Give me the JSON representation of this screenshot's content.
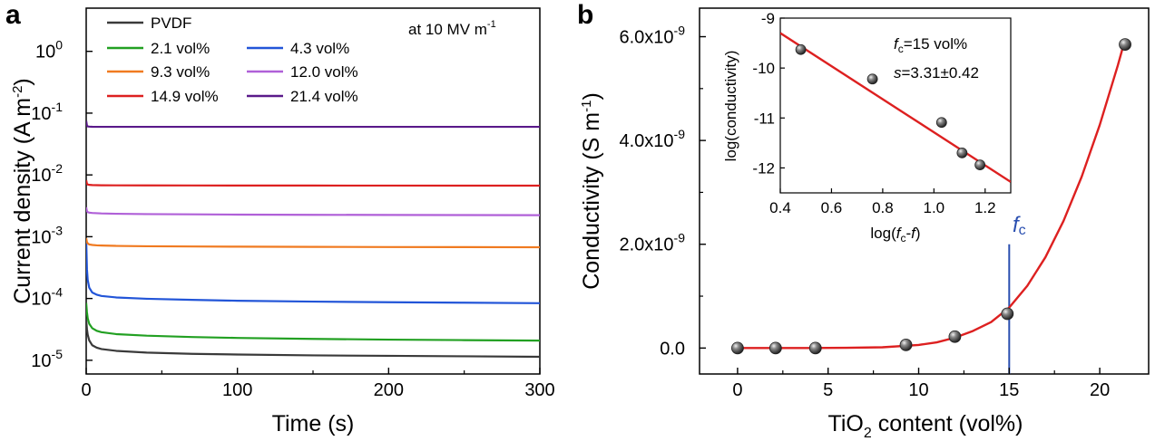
{
  "panel_a": {
    "letter": "a",
    "condition_label": "at 10 MV m",
    "condition_sup": "-1"
  },
  "panel_b": {
    "letter": "b",
    "fc_label": "f",
    "fc_sub": "c",
    "inset": {
      "fc_text_italic": "f",
      "fc_text_sub": "c",
      "fc_text_value": "=15 vol%",
      "s_text_italic": "s",
      "s_text_value": "=3.31±0.42"
    }
  },
  "chart_data": [
    {
      "type": "line",
      "title": "",
      "xlabel": "Time (s)",
      "ylabel": "Current density (A m-2)",
      "ylabel_parts": {
        "main": "Current density (A m",
        "sup": "-2",
        "end": ")"
      },
      "xlim": [
        0,
        300
      ],
      "ylim": [
        6e-06,
        5
      ],
      "yscale": "log",
      "xticks": [
        0,
        100,
        200,
        300
      ],
      "xtick_labels": [
        "0",
        "100",
        "200",
        "300"
      ],
      "yticks": [
        1e-05,
        0.0001,
        0.001,
        0.01,
        0.1,
        1
      ],
      "ytick_labels": [
        {
          "base": "10",
          "exp": "-5"
        },
        {
          "base": "10",
          "exp": "-4"
        },
        {
          "base": "10",
          "exp": "-3"
        },
        {
          "base": "10",
          "exp": "-2"
        },
        {
          "base": "10",
          "exp": "-1"
        },
        {
          "base": "10",
          "exp": "0"
        }
      ],
      "grid": false,
      "legend_position": "top-left",
      "series": [
        {
          "name": "PVDF",
          "color": "#3a3a3a",
          "x": [
            0,
            0.5,
            1,
            2,
            4,
            7,
            10,
            20,
            40,
            70,
            100,
            150,
            200,
            250,
            300
          ],
          "y": [
            4.5e-05,
            3.2e-05,
            2.6e-05,
            2.1e-05,
            1.75e-05,
            1.6e-05,
            1.52e-05,
            1.42e-05,
            1.33e-05,
            1.27e-05,
            1.24e-05,
            1.2e-05,
            1.18e-05,
            1.16e-05,
            1.14e-05
          ]
        },
        {
          "name": "2.1 vol%",
          "color": "#22a022",
          "x": [
            0,
            0.5,
            1,
            2,
            4,
            7,
            10,
            20,
            40,
            70,
            100,
            150,
            200,
            250,
            300
          ],
          "y": [
            8.5e-05,
            6e-05,
            4.8e-05,
            3.9e-05,
            3.3e-05,
            3e-05,
            2.85e-05,
            2.65e-05,
            2.5e-05,
            2.38e-05,
            2.3e-05,
            2.22e-05,
            2.16e-05,
            2.12e-05,
            2.08e-05
          ]
        },
        {
          "name": "4.3 vol%",
          "color": "#2255d8",
          "x": [
            0,
            0.5,
            1,
            2,
            4,
            7,
            10,
            20,
            40,
            70,
            100,
            150,
            200,
            250,
            300
          ],
          "y": [
            0.0009,
            0.0003,
            0.0002,
            0.00015,
            0.000125,
            0.000115,
            0.00011,
            0.000104,
            9.9e-05,
            9.5e-05,
            9.2e-05,
            8.9e-05,
            8.7e-05,
            8.55e-05,
            8.4e-05
          ]
        },
        {
          "name": "9.3 vol%",
          "color": "#f07a20",
          "x": [
            0,
            0.5,
            1,
            2,
            4,
            7,
            10,
            20,
            40,
            70,
            100,
            150,
            200,
            250,
            300
          ],
          "y": [
            0.00095,
            0.00082,
            0.00078,
            0.00075,
            0.000735,
            0.000725,
            0.00072,
            0.00071,
            0.0007,
            0.000695,
            0.00069,
            0.000685,
            0.00068,
            0.000678,
            0.000675
          ]
        },
        {
          "name": "12.0 vol%",
          "color": "#b060d8",
          "x": [
            0,
            0.5,
            1,
            2,
            4,
            7,
            10,
            20,
            40,
            70,
            100,
            150,
            200,
            250,
            300
          ],
          "y": [
            0.003,
            0.0026,
            0.0025,
            0.00245,
            0.00242,
            0.0024,
            0.00238,
            0.00235,
            0.00232,
            0.0023,
            0.00228,
            0.00226,
            0.00225,
            0.00224,
            0.00223
          ]
        },
        {
          "name": "14.9 vol%",
          "color": "#dd2020",
          "x": [
            0,
            0.5,
            1,
            2,
            4,
            7,
            10,
            20,
            40,
            70,
            100,
            150,
            200,
            250,
            300
          ],
          "y": [
            0.0082,
            0.0072,
            0.007,
            0.0069,
            0.00685,
            0.00682,
            0.0068,
            0.00678,
            0.00676,
            0.00675,
            0.00674,
            0.00673,
            0.00672,
            0.00671,
            0.0067
          ]
        },
        {
          "name": "21.4 vol%",
          "color": "#5a1a8a",
          "x": [
            0,
            0.5,
            1,
            2,
            4,
            7,
            10,
            20,
            40,
            70,
            100,
            150,
            200,
            250,
            300
          ],
          "y": [
            0.075,
            0.063,
            0.061,
            0.0605,
            0.0602,
            0.06,
            0.06,
            0.06,
            0.06,
            0.06,
            0.06,
            0.06,
            0.06,
            0.06,
            0.06
          ]
        }
      ]
    },
    {
      "type": "scatter",
      "title": "",
      "xlabel": "TiO2 content (vol%)",
      "xlabel_parts": {
        "main": "TiO",
        "sub": "2",
        "end": " content (vol%)"
      },
      "ylabel": "Conductivity (S m-1)",
      "ylabel_parts": {
        "main": "Conductivity (S m",
        "sup": "-1",
        "end": ")"
      },
      "xlim": [
        -2.1,
        22.7
      ],
      "ylim": [
        -5e-10,
        6.55e-09
      ],
      "xticks": [
        0,
        5,
        10,
        15,
        20
      ],
      "xtick_labels": [
        "0",
        "5",
        "10",
        "15",
        "20"
      ],
      "yticks": [
        0,
        2e-09,
        4e-09,
        6e-09
      ],
      "ytick_labels": [
        {
          "main": "0.0",
          "sup": ""
        },
        {
          "main": "2.0x10",
          "sup": "-9"
        },
        {
          "main": "4.0x10",
          "sup": "-9"
        },
        {
          "main": "6.0x10",
          "sup": "-9"
        }
      ],
      "grid": false,
      "series": [
        {
          "marker": "sphere",
          "color": "#555555",
          "x": [
            0,
            2.1,
            4.3,
            9.3,
            12.0,
            14.9,
            21.4
          ],
          "y": [
            0,
            0,
            0,
            6e-11,
            2.2e-10,
            6.6e-10,
            5.85e-09
          ]
        }
      ],
      "fit_curve": {
        "color": "#dd2020",
        "x": [
          0,
          2,
          4,
          6,
          8,
          10,
          11,
          12,
          13,
          14,
          15,
          16,
          17,
          18,
          19,
          20,
          21,
          21.4
        ],
        "y": [
          0,
          0,
          0,
          5e-12,
          1.5e-11,
          6e-11,
          1.1e-10,
          2e-10,
          3.3e-10,
          5e-10,
          7.8e-10,
          1.2e-09,
          1.75e-09,
          2.45e-09,
          3.3e-09,
          4.3e-09,
          5.45e-09,
          5.95e-09
        ]
      },
      "vertical_line": {
        "x": 15,
        "color": "#2a4fb0"
      }
    },
    {
      "type": "scatter",
      "title": "",
      "xlabel": "log(fc-f)",
      "xlabel_parts": {
        "pre": "log(",
        "f1": "f",
        "sub": "c",
        "mid": "-",
        "f2": "f",
        "end": ")"
      },
      "ylabel": "log(conductivity)",
      "xlim": [
        0.4,
        1.3
      ],
      "ylim": [
        -12.5,
        -9
      ],
      "xticks": [
        0.4,
        0.6,
        0.8,
        1.0,
        1.2
      ],
      "xtick_labels": [
        "0.4",
        "0.6",
        "0.8",
        "1.0",
        "1.2"
      ],
      "yticks": [
        -12,
        -11,
        -10,
        -9
      ],
      "ytick_labels": [
        "-12",
        "-11",
        "-10",
        "-9"
      ],
      "grid": false,
      "series": [
        {
          "marker": "sphere",
          "color": "#555555",
          "x": [
            0.48,
            0.76,
            1.03,
            1.11,
            1.18
          ],
          "y": [
            -9.63,
            -10.22,
            -11.09,
            -11.7,
            -11.94
          ]
        }
      ],
      "fit_line": {
        "color": "#dd2020",
        "x": [
          0.4,
          1.3
        ],
        "y": [
          -9.3,
          -12.28
        ]
      }
    }
  ]
}
